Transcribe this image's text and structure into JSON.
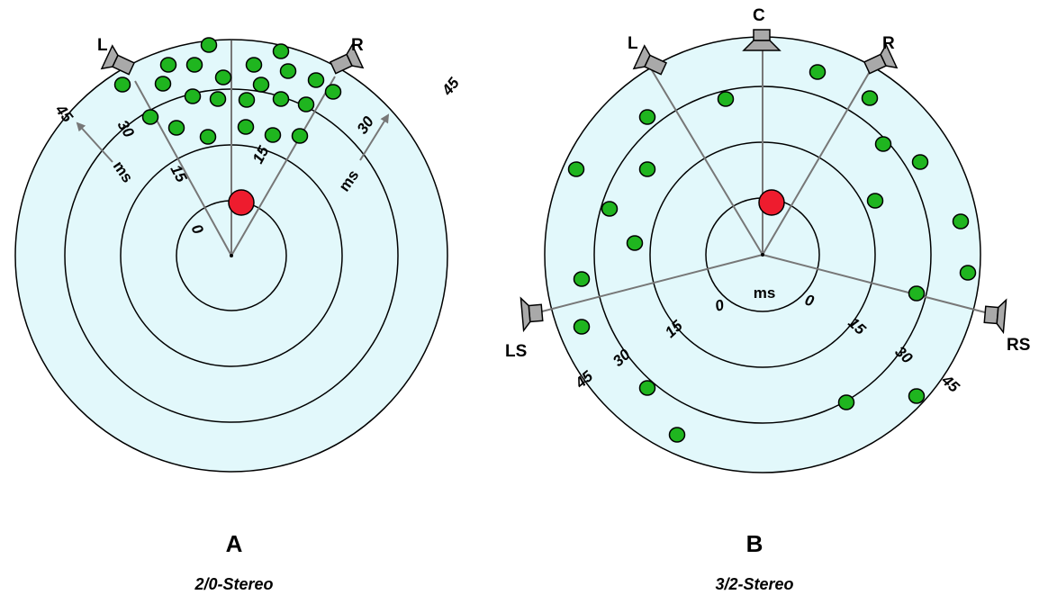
{
  "diagram_a": {
    "letter": "A",
    "caption": "2/0-Stereo",
    "speakers": [
      "L",
      "R"
    ],
    "ticks_left": [
      "0",
      "15",
      "30",
      "45"
    ],
    "ticks_right": [
      "15",
      "30",
      "45"
    ],
    "unit": "ms"
  },
  "diagram_b": {
    "letter": "B",
    "caption": "3/2-Stereo",
    "speakers": [
      "L",
      "C",
      "R",
      "LS",
      "RS"
    ],
    "ticks_left": [
      "0",
      "15",
      "30",
      "45"
    ],
    "ticks_right": [
      "0",
      "15",
      "30",
      "45"
    ],
    "unit": "ms"
  },
  "colors": {
    "circle_fill": "#e2f8fb",
    "reflection_dot": "#1fb51f",
    "direct_source": "#ee1c2e",
    "speaker": "#a9a9a9",
    "line": "#777777"
  }
}
